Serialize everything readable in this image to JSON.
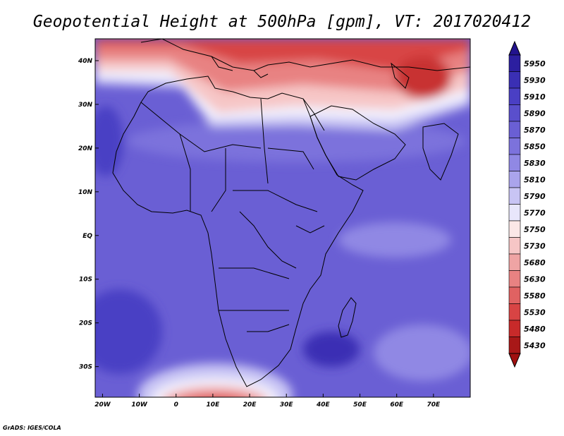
{
  "title": "Geopotential Height at 500hPa [gpm], VT: 2017020412",
  "credit": "GrADS: IGES/COLA",
  "map": {
    "projection": "lat-lon",
    "lon_ticks": [
      "20W",
      "10W",
      "0",
      "10E",
      "20E",
      "30E",
      "40E",
      "50E",
      "60E",
      "70E"
    ],
    "lat_ticks": [
      "40N",
      "30N",
      "20N",
      "10N",
      "EQ",
      "10S",
      "20S",
      "30S"
    ],
    "lon_range": [
      -22,
      80
    ],
    "lat_range": [
      -37,
      45
    ]
  },
  "colorbar": {
    "levels": [
      "5950",
      "5930",
      "5910",
      "5890",
      "5870",
      "5850",
      "5830",
      "5810",
      "5790",
      "5770",
      "5750",
      "5730",
      "5680",
      "5630",
      "5580",
      "5530",
      "5480",
      "5430"
    ],
    "colors": [
      "#2c1fa0",
      "#3a2fb4",
      "#4a3fc4",
      "#5a4fcc",
      "#6a5fd4",
      "#7c72dc",
      "#9088e4",
      "#aaa4ec",
      "#c8c4f4",
      "#e8e6fb",
      "#fbe7e7",
      "#f6c6c6",
      "#efa4a4",
      "#e88282",
      "#e06262",
      "#d84444",
      "#c82a2a",
      "#a81818"
    ],
    "top_color": "#22138e",
    "bottom_color": "#a01010"
  }
}
